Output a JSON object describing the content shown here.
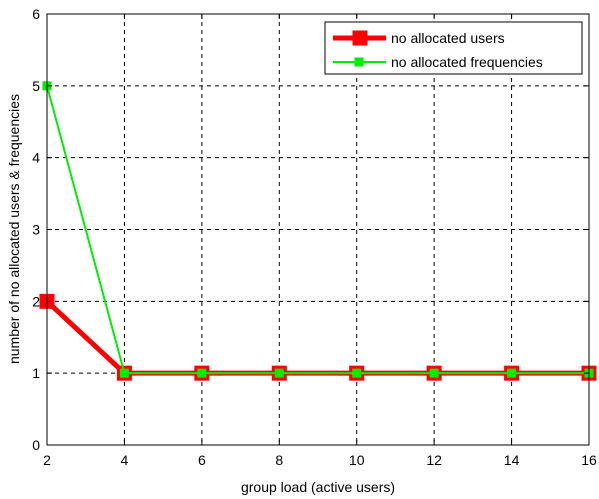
{
  "chart_data": {
    "type": "line",
    "xlabel": "group load (active users)",
    "ylabel": "number of no allocated users & frequencies",
    "xlim": [
      2,
      16
    ],
    "ylim": [
      0,
      6
    ],
    "x_ticks": [
      2,
      4,
      6,
      8,
      10,
      12,
      14,
      16
    ],
    "y_ticks": [
      0,
      1,
      2,
      3,
      4,
      5,
      6
    ],
    "grid": true,
    "legend_position": "top-right",
    "x": [
      2,
      4,
      6,
      8,
      10,
      12,
      14,
      16
    ],
    "series": [
      {
        "name": "no allocated users",
        "color": "#ff0000",
        "marker": "square",
        "values": [
          2,
          1,
          1,
          1,
          1,
          1,
          1,
          1
        ]
      },
      {
        "name": "no allocated frequencies",
        "color": "#00ee00",
        "marker": "square",
        "values": [
          5,
          1,
          1,
          1,
          1,
          1,
          1,
          1
        ]
      }
    ]
  }
}
